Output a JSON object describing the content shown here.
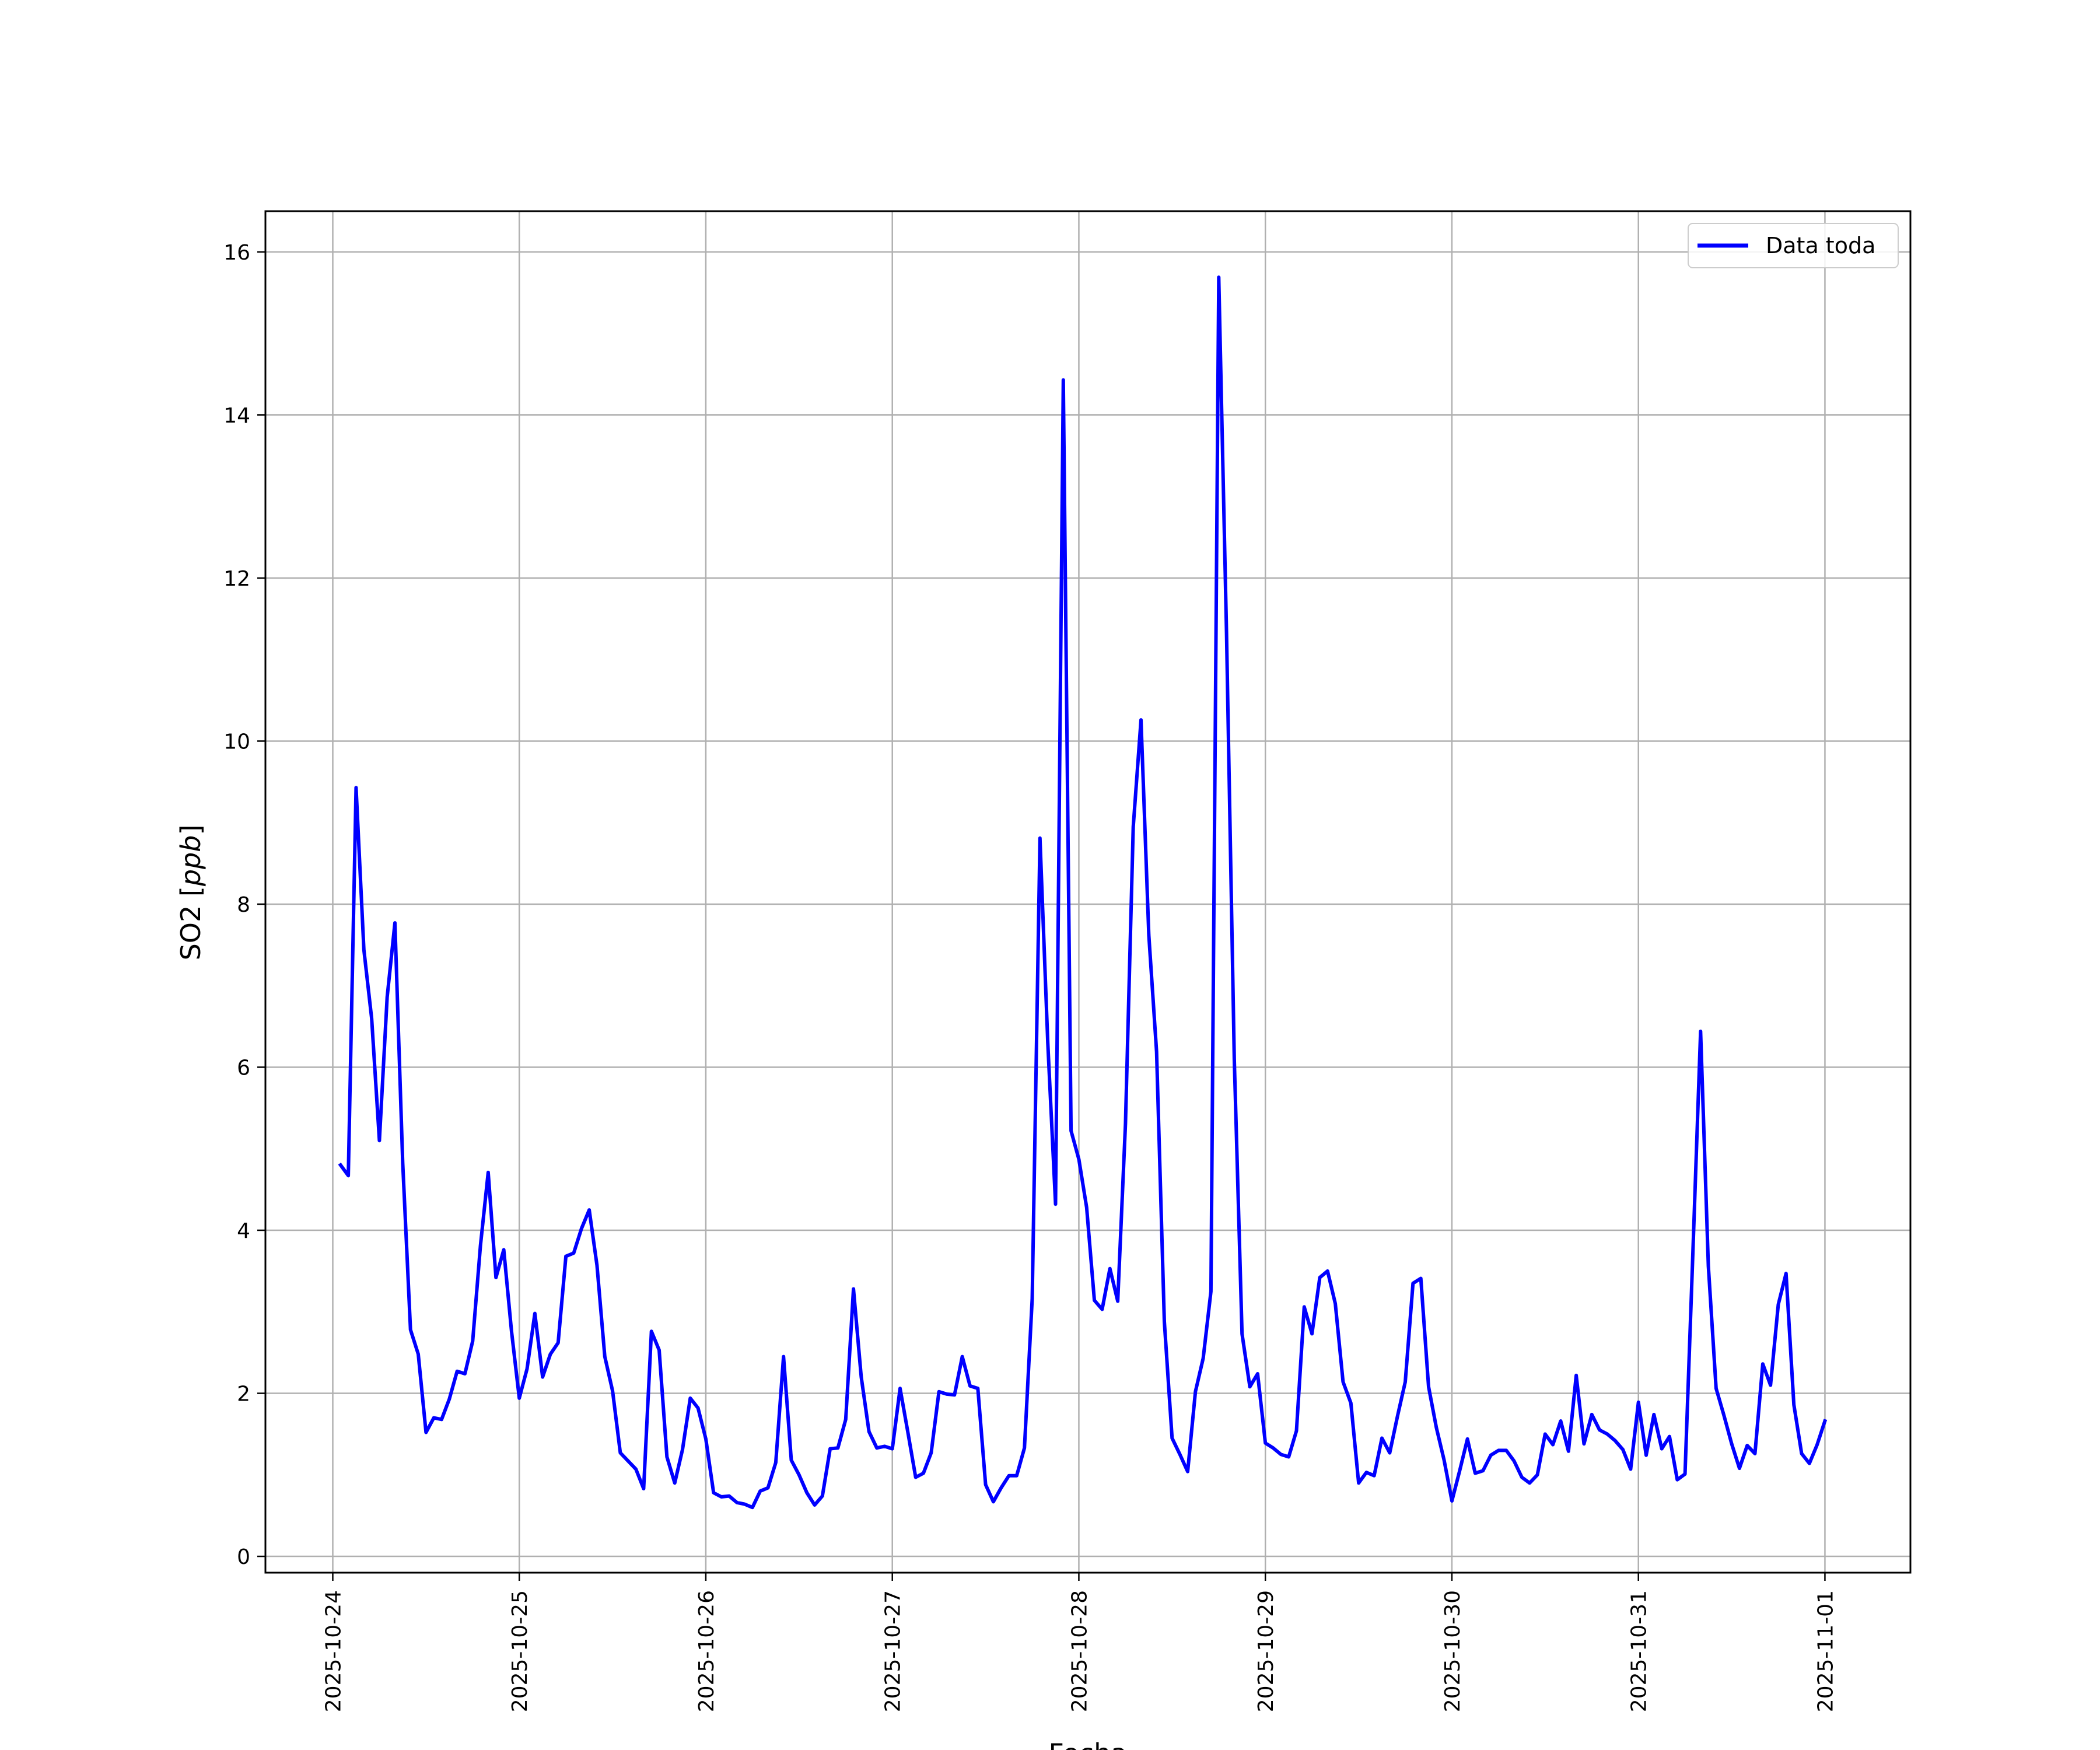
{
  "chart_data": {
    "type": "line",
    "title": "",
    "xlabel": "Fecha",
    "ylabel_main": "SO2 [",
    "ylabel_unit": "ppb",
    "ylabel_close": "]",
    "ylim": [
      -0.2,
      16.5
    ],
    "xlim": [
      "2025-10-23T15:20",
      "2025-11-01T11:00"
    ],
    "grid": true,
    "legend_position": "top-right",
    "line_color": "#0000ff",
    "x_ticks": [
      "2025-10-24",
      "2025-10-25",
      "2025-10-26",
      "2025-10-27",
      "2025-10-28",
      "2025-10-29",
      "2025-10-30",
      "2025-10-31",
      "2025-11-01"
    ],
    "y_ticks": [
      "0",
      "2",
      "4",
      "6",
      "8",
      "10",
      "12",
      "14",
      "16"
    ],
    "series": [
      {
        "name": "Data toda",
        "x": [
          "2025-10-24T01:00",
          "2025-10-24T02:00",
          "2025-10-24T03:00",
          "2025-10-24T04:00",
          "2025-10-24T05:00",
          "2025-10-24T06:00",
          "2025-10-24T07:00",
          "2025-10-24T08:00",
          "2025-10-24T09:00",
          "2025-10-24T10:00",
          "2025-10-24T11:00",
          "2025-10-24T12:00",
          "2025-10-24T13:00",
          "2025-10-24T14:00",
          "2025-10-24T15:00",
          "2025-10-24T16:00",
          "2025-10-24T17:00",
          "2025-10-24T18:00",
          "2025-10-24T19:00",
          "2025-10-24T20:00",
          "2025-10-24T21:00",
          "2025-10-24T22:00",
          "2025-10-24T23:00",
          "2025-10-25T00:00",
          "2025-10-25T01:00",
          "2025-10-25T02:00",
          "2025-10-25T03:00",
          "2025-10-25T04:00",
          "2025-10-25T05:00",
          "2025-10-25T06:00",
          "2025-10-25T07:00",
          "2025-10-25T08:00",
          "2025-10-25T09:00",
          "2025-10-25T10:00",
          "2025-10-25T11:00",
          "2025-10-25T12:00",
          "2025-10-25T13:00",
          "2025-10-25T14:00",
          "2025-10-25T15:00",
          "2025-10-25T16:00",
          "2025-10-25T17:00",
          "2025-10-25T18:00",
          "2025-10-25T19:00",
          "2025-10-25T20:00",
          "2025-10-25T21:00",
          "2025-10-25T22:00",
          "2025-10-25T23:00",
          "2025-10-26T00:00",
          "2025-10-26T01:00",
          "2025-10-26T02:00",
          "2025-10-26T03:00",
          "2025-10-26T04:00",
          "2025-10-26T05:00",
          "2025-10-26T06:00",
          "2025-10-26T07:00",
          "2025-10-26T08:00",
          "2025-10-26T09:00",
          "2025-10-26T10:00",
          "2025-10-26T11:00",
          "2025-10-26T12:00",
          "2025-10-26T13:00",
          "2025-10-26T14:00",
          "2025-10-26T15:00",
          "2025-10-26T16:00",
          "2025-10-26T17:00",
          "2025-10-26T18:00",
          "2025-10-26T19:00",
          "2025-10-26T20:00",
          "2025-10-26T21:00",
          "2025-10-26T22:00",
          "2025-10-26T23:00",
          "2025-10-27T00:00",
          "2025-10-27T01:00",
          "2025-10-27T02:00",
          "2025-10-27T03:00",
          "2025-10-27T04:00",
          "2025-10-27T05:00",
          "2025-10-27T06:00",
          "2025-10-27T07:00",
          "2025-10-27T08:00",
          "2025-10-27T09:00",
          "2025-10-27T10:00",
          "2025-10-27T11:00",
          "2025-10-27T12:00",
          "2025-10-27T13:00",
          "2025-10-27T14:00",
          "2025-10-27T15:00",
          "2025-10-27T16:00",
          "2025-10-27T17:00",
          "2025-10-27T18:00",
          "2025-10-27T19:00",
          "2025-10-27T20:00",
          "2025-10-27T21:00",
          "2025-10-27T22:00",
          "2025-10-27T23:00",
          "2025-10-28T00:00",
          "2025-10-28T01:00",
          "2025-10-28T02:00",
          "2025-10-28T03:00",
          "2025-10-28T04:00",
          "2025-10-28T05:00",
          "2025-10-28T06:00",
          "2025-10-28T07:00",
          "2025-10-28T08:00",
          "2025-10-28T09:00",
          "2025-10-28T10:00",
          "2025-10-28T11:00",
          "2025-10-28T12:00",
          "2025-10-28T13:00",
          "2025-10-28T14:00",
          "2025-10-28T15:00",
          "2025-10-28T16:00",
          "2025-10-28T17:00",
          "2025-10-28T18:00",
          "2025-10-28T19:00",
          "2025-10-28T20:00",
          "2025-10-28T21:00",
          "2025-10-28T22:00",
          "2025-10-28T23:00",
          "2025-10-29T00:00",
          "2025-10-29T01:00",
          "2025-10-29T02:00",
          "2025-10-29T03:00",
          "2025-10-29T04:00",
          "2025-10-29T05:00",
          "2025-10-29T06:00",
          "2025-10-29T07:00",
          "2025-10-29T08:00",
          "2025-10-29T09:00",
          "2025-10-29T10:00",
          "2025-10-29T11:00",
          "2025-10-29T12:00",
          "2025-10-29T13:00",
          "2025-10-29T14:00",
          "2025-10-29T15:00",
          "2025-10-29T16:00",
          "2025-10-29T17:00",
          "2025-10-29T18:00",
          "2025-10-29T19:00",
          "2025-10-29T20:00",
          "2025-10-29T21:00",
          "2025-10-29T22:00",
          "2025-10-29T23:00",
          "2025-10-30T00:00",
          "2025-10-30T01:00",
          "2025-10-30T02:00",
          "2025-10-30T03:00",
          "2025-10-30T04:00",
          "2025-10-30T05:00",
          "2025-10-30T06:00",
          "2025-10-30T07:00",
          "2025-10-30T08:00",
          "2025-10-30T09:00",
          "2025-10-30T10:00",
          "2025-10-30T11:00",
          "2025-10-30T12:00",
          "2025-10-30T13:00",
          "2025-10-30T14:00",
          "2025-10-30T15:00",
          "2025-10-30T16:00",
          "2025-10-30T17:00",
          "2025-10-30T18:00",
          "2025-10-30T19:00",
          "2025-10-30T20:00",
          "2025-10-30T21:00",
          "2025-10-30T22:00",
          "2025-10-30T23:00",
          "2025-10-31T00:00",
          "2025-10-31T01:00",
          "2025-10-31T02:00",
          "2025-10-31T03:00",
          "2025-10-31T04:00",
          "2025-10-31T05:00",
          "2025-10-31T06:00",
          "2025-10-31T07:00",
          "2025-10-31T08:00",
          "2025-10-31T09:00",
          "2025-10-31T10:00",
          "2025-10-31T11:00",
          "2025-10-31T12:00",
          "2025-10-31T13:00",
          "2025-10-31T14:00",
          "2025-10-31T15:00",
          "2025-10-31T16:00",
          "2025-10-31T17:00",
          "2025-10-31T18:00",
          "2025-10-31T19:00",
          "2025-10-31T20:00",
          "2025-10-31T21:00",
          "2025-10-31T22:00",
          "2025-10-31T23:00",
          "2025-11-01T00:00"
        ],
        "y": [
          4.8,
          4.67,
          9.43,
          7.44,
          6.6,
          5.1,
          6.86,
          7.77,
          4.82,
          2.78,
          2.48,
          1.52,
          1.7,
          1.68,
          1.93,
          2.27,
          2.24,
          2.64,
          3.81,
          4.71,
          3.42,
          3.76,
          2.76,
          1.94,
          2.3,
          2.98,
          2.2,
          2.48,
          2.62,
          3.68,
          3.72,
          4.02,
          4.25,
          3.57,
          2.45,
          2.03,
          1.27,
          1.17,
          1.07,
          0.83,
          2.76,
          2.53,
          1.22,
          0.9,
          1.31,
          1.94,
          1.82,
          1.44,
          0.78,
          0.73,
          0.74,
          0.66,
          0.64,
          0.6,
          0.8,
          0.84,
          1.15,
          2.45,
          1.18,
          1.0,
          0.78,
          0.63,
          0.74,
          1.32,
          1.33,
          1.68,
          3.28,
          2.2,
          1.53,
          1.33,
          1.35,
          1.32,
          2.06,
          1.52,
          0.97,
          1.02,
          1.27,
          2.02,
          1.99,
          1.98,
          2.45,
          2.09,
          2.06,
          0.88,
          0.67,
          0.84,
          0.99,
          0.99,
          1.33,
          3.16,
          8.81,
          6.3,
          4.32,
          14.43,
          5.22,
          4.87,
          4.28,
          3.14,
          3.03,
          3.53,
          3.13,
          5.31,
          8.95,
          10.26,
          7.62,
          6.19,
          2.88,
          1.45,
          1.25,
          1.04,
          2.02,
          2.43,
          3.25,
          15.69,
          11.33,
          6.1,
          2.73,
          2.08,
          2.24,
          1.39,
          1.33,
          1.25,
          1.22,
          1.54,
          3.06,
          2.73,
          3.42,
          3.5,
          3.1,
          2.14,
          1.88,
          0.9,
          1.03,
          0.99,
          1.45,
          1.27,
          1.72,
          2.14,
          3.35,
          3.41,
          2.08,
          1.58,
          1.18,
          0.68,
          1.05,
          1.44,
          1.02,
          1.05,
          1.24,
          1.3,
          1.3,
          1.17,
          0.97,
          0.9,
          1.0,
          1.5,
          1.37,
          1.66,
          1.29,
          2.22,
          1.38,
          1.74,
          1.55,
          1.5,
          1.42,
          1.31,
          1.07,
          1.89,
          1.24,
          1.74,
          1.32,
          1.47,
          0.94,
          1.01,
          3.71,
          6.44,
          3.56,
          2.06,
          1.73,
          1.38,
          1.08,
          1.36,
          1.26,
          2.36,
          2.1,
          3.09,
          3.47,
          1.86,
          1.26,
          1.14,
          1.37,
          1.66
        ]
      }
    ]
  }
}
